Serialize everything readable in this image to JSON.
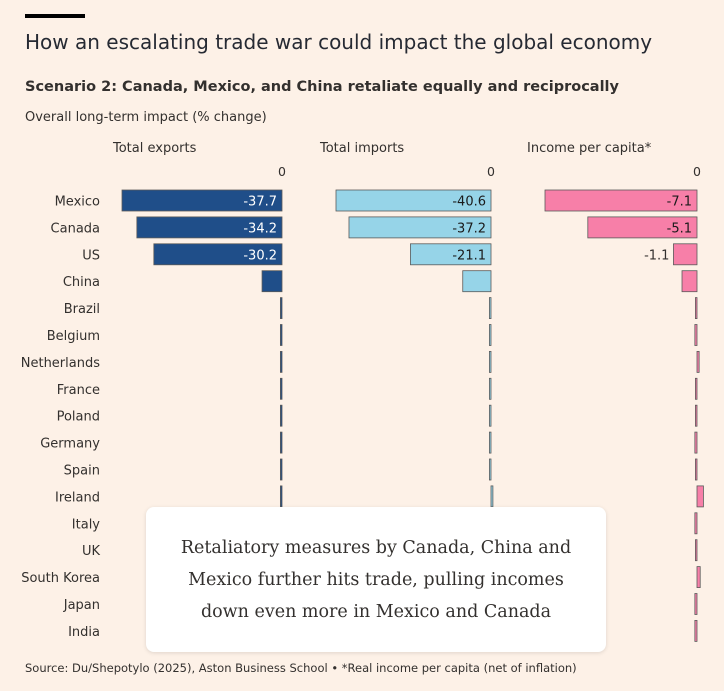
{
  "header": {
    "title": "How an escalating trade war could impact the global economy",
    "subtitle": "Scenario 2: Canada, Mexico, and China retaliate equally and reciprocally",
    "unit": "Overall long-term impact (% change)"
  },
  "callout": {
    "text": "Retaliatory measures by Canada, China and Mexico further hits trade, pulling incomes down even more in Mexico and Canada"
  },
  "footer": {
    "source": "Source: Du/Shepotylo (2025), Aston Business School • *Real income per capita (net of inflation)"
  },
  "chart_data": {
    "type": "bar",
    "orientation": "horizontal",
    "categories": [
      "Mexico",
      "Canada",
      "US",
      "China",
      "Brazil",
      "Belgium",
      "Netherlands",
      "France",
      "Poland",
      "Germany",
      "Spain",
      "Ireland",
      "Italy",
      "UK",
      "South Korea",
      "Japan",
      "India"
    ],
    "zero_label": "0",
    "series": [
      {
        "name": "Total exports",
        "color": "#1f4e89",
        "values": [
          -37.7,
          -34.2,
          -30.2,
          -4.7,
          -0.1,
          -0.1,
          -0.1,
          -0.1,
          -0.1,
          -0.1,
          -0.1,
          -0.2,
          -0.1,
          -0.1,
          -0.1,
          -0.1,
          -0.1
        ],
        "labels": [
          "-37.7",
          "-34.2",
          "-30.2",
          "",
          "",
          "",
          "",
          "",
          "",
          "",
          "",
          "",
          "",
          "",
          "",
          "",
          ""
        ]
      },
      {
        "name": "Total imports",
        "color": "#96d4e8",
        "values": [
          -40.6,
          -37.2,
          -21.1,
          -7.4,
          -0.1,
          -0.1,
          -0.1,
          -0.1,
          -0.1,
          -0.1,
          -0.1,
          0.5,
          -0.1,
          -0.1,
          -0.1,
          -0.1,
          -0.1
        ],
        "labels": [
          "-40.6",
          "-37.2",
          "-21.1",
          "",
          "",
          "",
          "",
          "",
          "",
          "",
          "",
          "",
          "",
          "",
          "",
          "",
          ""
        ]
      },
      {
        "name": "Income per capita*",
        "color": "#f77fa8",
        "values": [
          -7.1,
          -5.1,
          -1.1,
          -0.7,
          -0.05,
          -0.1,
          0.1,
          -0.05,
          -0.05,
          -0.1,
          -0.05,
          0.3,
          -0.1,
          -0.05,
          0.15,
          -0.1,
          -0.1
        ],
        "labels": [
          "-7.1",
          "-5.1",
          "-1.1",
          "",
          "",
          "",
          "",
          "",
          "",
          "",
          "",
          "",
          "",
          "",
          "",
          "",
          ""
        ]
      }
    ]
  }
}
